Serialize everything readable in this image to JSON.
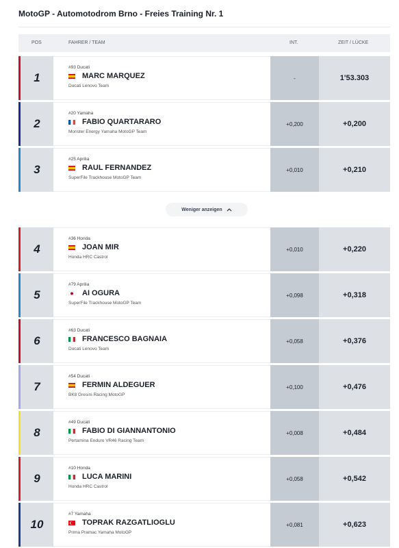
{
  "header": {
    "title": "MotoGP - Automotodrom Brno - Freies Training Nr. 1"
  },
  "table": {
    "columns": [
      "POS",
      "FAHRER / TEAM",
      "INT.",
      "ZEIT / LÜCKE"
    ],
    "rows": [
      {
        "pos": 1,
        "bike": "#93 Ducati",
        "flag": "es",
        "rider": "MARC MARQUEZ",
        "team": "Ducati Lenovo Team",
        "int": "-",
        "time": "1'53.303",
        "color": "#c8102e"
      },
      {
        "pos": 2,
        "bike": "#20 Yamaha",
        "flag": "fr",
        "rider": "FABIO QUARTARARO",
        "team": "Monster Energy Yamaha MotoGP Team",
        "int": "+0,200",
        "time": "+0,200",
        "color": "#1d2c8a"
      },
      {
        "pos": 3,
        "bike": "#25 Aprilia",
        "flag": "es",
        "rider": "RAUL FERNANDEZ",
        "team": "SuperFile Trackhouse MotoGP Team",
        "int": "+0,010",
        "time": "+0,210",
        "color": "#2a86c8"
      },
      {
        "pos": 4,
        "bike": "#36 Honda",
        "flag": "es",
        "rider": "JOAN MIR",
        "team": "Honda HRC Castrol",
        "int": "+0,010",
        "time": "+0,220",
        "color": "#d0202a"
      },
      {
        "pos": 5,
        "bike": "#79 Aprilia",
        "flag": "jp",
        "rider": "AI OGURA",
        "team": "SuperFile Trackhouse MotoGP Team",
        "int": "+0,098",
        "time": "+0,318",
        "color": "#2a86c8"
      },
      {
        "pos": 6,
        "bike": "#63 Ducati",
        "flag": "it",
        "rider": "FRANCESCO BAGNAIA",
        "team": "Ducati Lenovo Team",
        "int": "+0,058",
        "time": "+0,376",
        "color": "#c8102e"
      },
      {
        "pos": 7,
        "bike": "#54 Ducati",
        "flag": "es",
        "rider": "FERMIN ALDEGUER",
        "team": "BK8 Gresini Racing MotoGP",
        "int": "+0,100",
        "time": "+0,476",
        "color": "#a9a6e6"
      },
      {
        "pos": 8,
        "bike": "#49 Ducati",
        "flag": "it",
        "rider": "FABIO DI GIANNANTONIO",
        "team": "Pertamina Enduro VR46 Racing Team",
        "int": "+0,008",
        "time": "+0,484",
        "color": "#f1e320"
      },
      {
        "pos": 9,
        "bike": "#10 Honda",
        "flag": "it",
        "rider": "LUCA MARINI",
        "team": "Honda HRC Castrol",
        "int": "+0,058",
        "time": "+0,542",
        "color": "#d0202a"
      },
      {
        "pos": 10,
        "bike": "#7 Yamaha",
        "flag": "tr",
        "rider": "TOPRAK RAZGATLIOGLU",
        "team": "Prima Pramac Yamaha MotoGP",
        "int": "+0,081",
        "time": "+0,623",
        "color": "#1d3b8f"
      }
    ]
  },
  "toggle": {
    "label": "Weniger anzeigen"
  }
}
